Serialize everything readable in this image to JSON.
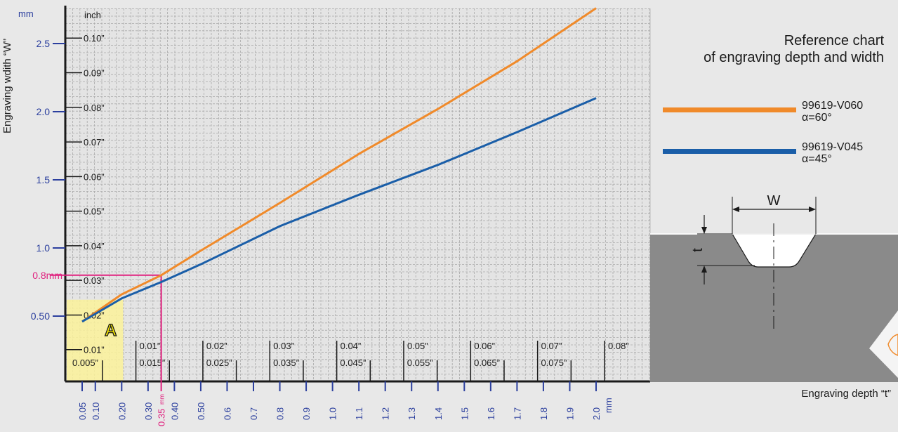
{
  "chart_data": {
    "type": "line",
    "title": "Reference chart",
    "subtitle": "of engraving depth and width",
    "xlabel": "Engraving depth “t”",
    "ylabel": "Engraving wdith “W”",
    "x_unit": "mm",
    "y_unit_mm": "mm",
    "y_unit_inch": "inch",
    "xlim": [
      0.0,
      2.1
    ],
    "ylim": [
      0.0,
      2.85
    ],
    "grid": true,
    "x_ticks_mm": [
      "0.05",
      "0.10",
      "0.20",
      "0.30",
      "0.40",
      "0.50",
      "0.6",
      "0.7",
      "0.8",
      "0.9",
      "1.0",
      "1.1",
      "1.2",
      "1.3",
      "1.4",
      "1.5",
      "1.6",
      "1.7",
      "1.8",
      "1.9",
      "2.0"
    ],
    "x_ticks_inch_upper": [
      "0.01”",
      "0.02”",
      "0.03”",
      "0.04”",
      "0.05”",
      "0.06”",
      "0.07”",
      "0.08”"
    ],
    "x_ticks_inch_lower": [
      "0.005”",
      "0.015”",
      "0.025”",
      "0.035”",
      "0.045”",
      "0.055”",
      "0.065”",
      "0.075”"
    ],
    "y_ticks_mm": [
      "0.50",
      "1.0",
      "1.5",
      "2.0",
      "2.5"
    ],
    "y_ticks_inch": [
      "0.01”",
      "0.02”",
      "0.03”",
      "0.04”",
      "0.05”",
      "0.06”",
      "0.07”",
      "0.08”",
      "0.09”",
      "0.10”"
    ],
    "series": [
      {
        "name": "99619-V060",
        "sub": "α=60°",
        "color": "#f08a2a",
        "x": [
          0.05,
          0.2,
          0.35,
          0.5,
          0.8,
          1.1,
          1.4,
          1.7,
          2.0
        ],
        "y": [
          0.46,
          0.66,
          0.8,
          0.98,
          1.33,
          1.69,
          2.02,
          2.37,
          2.76
        ]
      },
      {
        "name": "99619-V045",
        "sub": "α=45°",
        "color": "#1a5ea8",
        "x": [
          0.05,
          0.2,
          0.35,
          0.5,
          0.8,
          1.1,
          1.4,
          1.7,
          2.0
        ],
        "y": [
          0.46,
          0.63,
          0.75,
          0.88,
          1.16,
          1.39,
          1.61,
          1.85,
          2.1
        ]
      }
    ],
    "annotation": {
      "x_value": 0.35,
      "y_value": 0.8,
      "x_label": "0.35",
      "x_unit_label": "mm",
      "y_label": "0.8mm",
      "color": "#e0207e"
    },
    "highlight": {
      "label": "A",
      "x_range": [
        0.0,
        0.2
      ],
      "y_range": [
        0.0,
        0.62
      ],
      "color": "#fbf29a"
    },
    "diagram": {
      "width_label": "W",
      "depth_label": "t"
    }
  }
}
